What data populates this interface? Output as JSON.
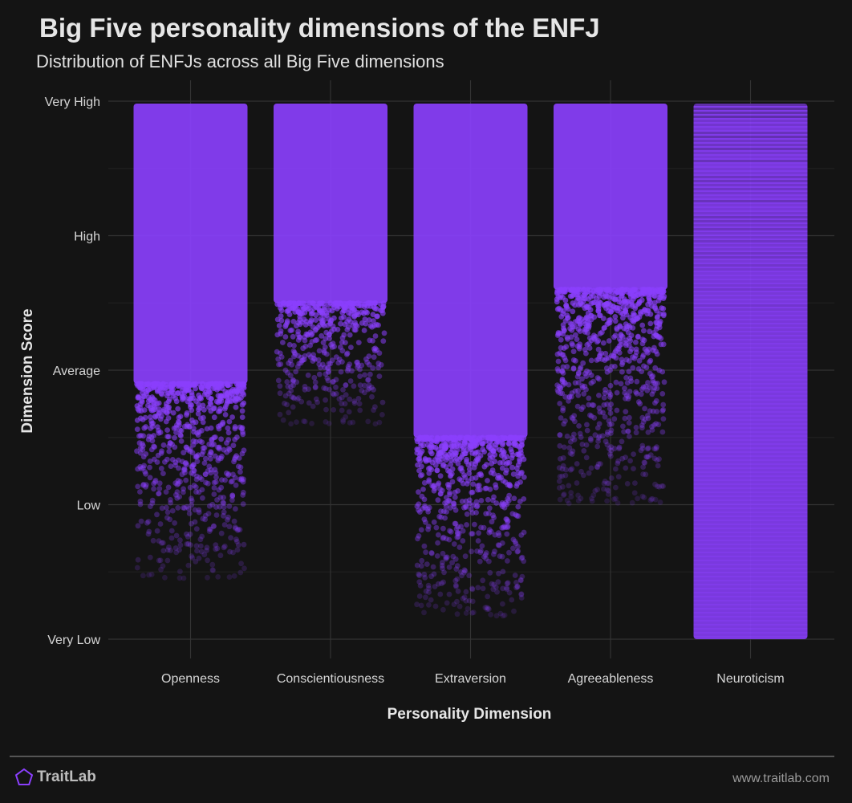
{
  "title": "Big Five personality dimensions of the ENFJ",
  "subtitle": "Distribution of ENFJs across all Big Five dimensions",
  "chart_data": {
    "type": "scatter",
    "xlabel": "Personality Dimension",
    "ylabel": "Dimension Score",
    "categories": [
      "Openness",
      "Conscientiousness",
      "Extraversion",
      "Agreeableness",
      "Neuroticism"
    ],
    "y_ticks": [
      "Very Low",
      "Low",
      "Average",
      "High",
      "Very High"
    ],
    "ylim": [
      1,
      5
    ],
    "point_color": "#8a3ffc",
    "distributions": [
      {
        "category": "Openness",
        "dense_min": 2.9,
        "min": 1.45,
        "max": 5
      },
      {
        "category": "Conscientiousness",
        "dense_min": 3.5,
        "min": 2.6,
        "max": 5
      },
      {
        "category": "Extraversion",
        "dense_min": 2.5,
        "min": 1.17,
        "max": 5
      },
      {
        "category": "Agreeableness",
        "dense_min": 3.6,
        "min": 2.0,
        "max": 5
      },
      {
        "category": "Neuroticism",
        "dense_min": 1.0,
        "min": 1.0,
        "max": 5
      }
    ],
    "grid": true
  },
  "brand": {
    "name": "TraitLab",
    "url": "www.traitlab.com",
    "accent": "#8a3ffc"
  }
}
